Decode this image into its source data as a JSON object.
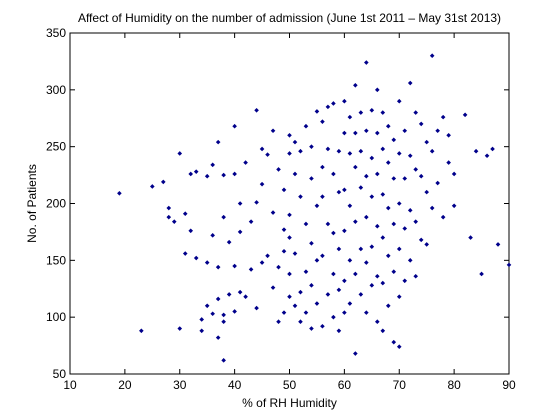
{
  "chart_data": {
    "type": "scatter",
    "title": "Affect of Humidity on the number of admission (June 1st 2011 – May 31st 2013)",
    "xlabel": "% of RH Humidity",
    "ylabel": "No. of Patients",
    "xlim": [
      10,
      90
    ],
    "ylim": [
      50,
      350
    ],
    "xticks": [
      "10",
      "20",
      "30",
      "40",
      "50",
      "60",
      "70",
      "80",
      "90"
    ],
    "yticks": [
      "50",
      "100",
      "150",
      "200",
      "250",
      "300",
      "350"
    ],
    "grid": false,
    "legend": "none",
    "marker_color": "#00008b",
    "marker": "diamond",
    "series": [
      {
        "x": [
          19,
          23,
          25,
          27,
          28,
          28,
          29,
          30,
          30,
          31,
          31,
          32,
          32,
          33,
          33,
          34,
          34,
          35,
          35,
          35,
          36,
          36,
          36,
          37,
          37,
          37,
          37,
          38,
          38,
          38,
          38,
          38,
          39,
          39,
          40,
          40,
          40,
          40,
          41,
          41,
          41,
          42,
          42,
          43,
          43,
          44,
          44,
          44,
          45,
          45,
          45,
          46,
          46,
          47,
          47,
          47,
          48,
          48,
          48,
          49,
          49,
          49,
          49,
          50,
          50,
          50,
          50,
          50,
          50,
          51,
          51,
          51,
          51,
          52,
          52,
          52,
          52,
          53,
          53,
          53,
          53,
          54,
          54,
          54,
          54,
          54,
          55,
          55,
          55,
          55,
          56,
          56,
          56,
          56,
          56,
          57,
          57,
          57,
          57,
          58,
          58,
          58,
          58,
          58,
          59,
          59,
          59,
          59,
          59,
          60,
          60,
          60,
          60,
          60,
          60,
          61,
          61,
          61,
          61,
          61,
          62,
          62,
          62,
          62,
          62,
          62,
          63,
          63,
          63,
          63,
          63,
          64,
          64,
          64,
          64,
          64,
          64,
          65,
          65,
          65,
          65,
          65,
          66,
          66,
          66,
          66,
          66,
          66,
          67,
          67,
          67,
          67,
          67,
          67,
          68,
          68,
          68,
          68,
          68,
          69,
          69,
          69,
          69,
          69,
          70,
          70,
          70,
          70,
          70,
          70,
          71,
          71,
          71,
          71,
          72,
          72,
          72,
          72,
          73,
          73,
          73,
          73,
          74,
          74,
          74,
          75,
          75,
          75,
          76,
          76,
          76,
          77,
          77,
          78,
          78,
          79,
          79,
          80,
          80,
          82,
          83,
          84,
          85,
          86,
          87,
          88,
          90
        ],
        "y": [
          209,
          88,
          215,
          219,
          196,
          188,
          184,
          244,
          90,
          156,
          191,
          226,
          176,
          152,
          228,
          88,
          98,
          224,
          110,
          148,
          172,
          234,
          103,
          254,
          82,
          116,
          144,
          62,
          102,
          188,
          225,
          96,
          166,
          120,
          268,
          226,
          145,
          105,
          200,
          122,
          175,
          236,
          118,
          184,
          142,
          282,
          201,
          108,
          148,
          248,
          217,
          154,
          243,
          126,
          192,
          264,
          144,
          230,
          96,
          212,
          158,
          104,
          177,
          244,
          118,
          260,
          190,
          138,
          170,
          226,
          110,
          254,
          156,
          246,
          122,
          206,
          96,
          268,
          182,
          140,
          104,
          250,
          222,
          165,
          128,
          90,
          281,
          198,
          150,
          112,
          272,
          232,
          206,
          154,
          92,
          285,
          248,
          182,
          120,
          288,
          226,
          174,
          138,
          100,
          246,
          210,
          160,
          124,
          88,
          290,
          262,
          212,
          176,
          132,
          104,
          276,
          244,
          198,
          150,
          112,
          304,
          262,
          232,
          184,
          138,
          68,
          280,
          246,
          214,
          160,
          120,
          324,
          264,
          224,
          188,
          148,
          104,
          282,
          240,
          206,
          162,
          128,
          300,
          262,
          226,
          180,
          136,
          96,
          280,
          248,
          208,
          170,
          130,
          88,
          268,
          236,
          196,
          154,
          110,
          256,
          222,
          182,
          140,
          78,
          290,
          244,
          200,
          160,
          118,
          74,
          264,
          222,
          178,
          132,
          306,
          242,
          194,
          150,
          280,
          230,
          184,
          136,
          270,
          224,
          168,
          254,
          210,
          164,
          330,
          246,
          196,
          264,
          218,
          276,
          188,
          236,
          260,
          198,
          226,
          278,
          170,
          246,
          138,
          242,
          248,
          164,
          146
        ]
      }
    ]
  }
}
